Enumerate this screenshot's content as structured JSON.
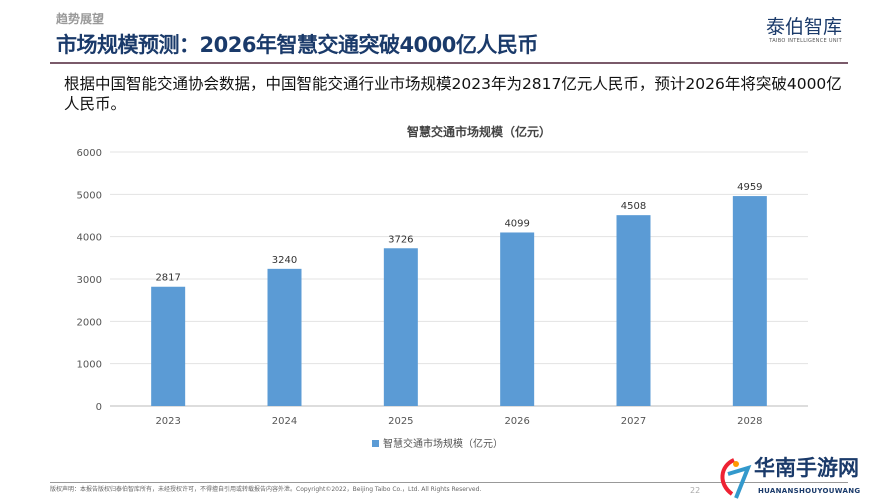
{
  "header": {
    "kicker": "趋势展望",
    "title": "市场规模预测：2026年智慧交通突破4000亿人民币",
    "logo_cn": "泰伯智库",
    "logo_en": "TAIBO INTELLIGENCE UNIT"
  },
  "description": "根据中国智能交通协会数据，中国智能交通行业市场规模2023年为2817亿元人民币，预计2026年将突破4000亿人民币。",
  "chart_data": {
    "type": "bar",
    "title": "智慧交通市场规模（亿元）",
    "categories": [
      "2023",
      "2024",
      "2025",
      "2026",
      "2027",
      "2028"
    ],
    "series": [
      {
        "name": "智慧交通市场规模（亿元）",
        "values": [
          2817,
          3240,
          3726,
          4099,
          4508,
          4959
        ]
      }
    ],
    "ylim": [
      0,
      6000
    ],
    "yticks": [
      0,
      1000,
      2000,
      3000,
      4000,
      5000,
      6000
    ],
    "grid": true,
    "legend": "bottom",
    "color": "#5b9bd5"
  },
  "footer": {
    "text": "版权声明：本报告版权归泰伯智库所有，未经授权许可，不得擅自引用或转载报告内容外泄。Copyright©2022，Beijing Taibo Co.，Ltd. All Rights Reserved.",
    "page": "22"
  },
  "watermark": {
    "cn": "华南手游网",
    "en": "HUANANSHOUYOUWANG"
  }
}
